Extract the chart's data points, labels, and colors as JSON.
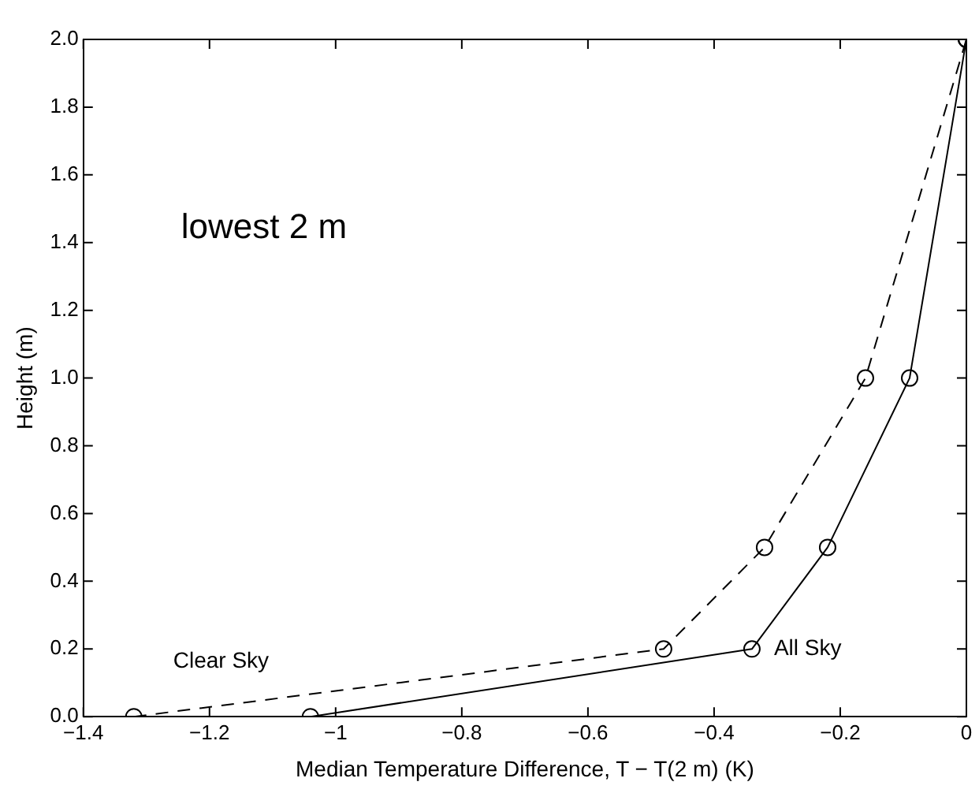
{
  "chart_data": {
    "type": "line",
    "xlabel": "Median Temperature Difference, T − T(2 m) (K)",
    "ylabel": "Height (m)",
    "annotations": [
      "lowest 2 m"
    ],
    "xlim": [
      -1.4,
      0
    ],
    "xticks": [
      {
        "value": -1.4,
        "label": "−1.4"
      },
      {
        "value": -1.2,
        "label": "−1.2"
      },
      {
        "value": -1,
        "label": "−1"
      },
      {
        "value": -0.8,
        "label": "−0.8"
      },
      {
        "value": -0.6,
        "label": "−0.6"
      },
      {
        "value": -0.4,
        "label": "−0.4"
      },
      {
        "value": -0.2,
        "label": "−0.2"
      },
      0
    ],
    "ylim": [
      0,
      2
    ],
    "yticks": [
      {
        "value": 0,
        "label": "0.0"
      },
      0.2,
      0.4,
      0.6,
      0.8,
      {
        "value": 1,
        "label": "1.0"
      },
      1.2,
      1.4,
      1.6,
      1.8,
      {
        "value": 2,
        "label": "2.0"
      }
    ],
    "grid": false,
    "legend": false,
    "marker": "circle",
    "series": [
      {
        "name": "Clear Sky",
        "color": "#000000",
        "line_style": "dashed",
        "x": [
          -1.32,
          -0.48,
          -0.32,
          -0.16,
          0
        ],
        "values": [
          0,
          0.2,
          0.5,
          1.0,
          2.0
        ]
      },
      {
        "name": "All Sky",
        "color": "#000000",
        "line_style": "solid",
        "x": [
          -1.04,
          -0.34,
          -0.22,
          -0.09,
          0
        ],
        "values": [
          0,
          0.2,
          0.5,
          1.0,
          2.0
        ]
      }
    ]
  }
}
